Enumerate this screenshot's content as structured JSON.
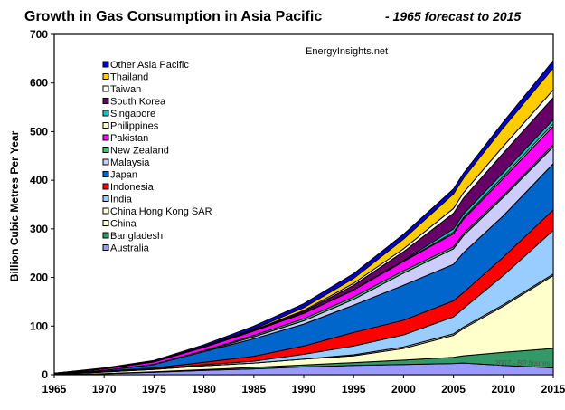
{
  "chart_data": {
    "type": "area",
    "stacked": true,
    "title": "Growth in Gas Consumption in Asia Pacific",
    "subtitle": "- 1965 forecast to 2015",
    "xlabel": "",
    "ylabel": "Billion Cubic Metres  Per Year",
    "watermark": "EnergyInsights.net",
    "credit": "2007 - BP figures",
    "xlim": [
      1965,
      2015
    ],
    "ylim": [
      0,
      700
    ],
    "x_ticks": [
      1965,
      1970,
      1975,
      1980,
      1985,
      1990,
      1995,
      2000,
      2005,
      2010,
      2015
    ],
    "y_ticks": [
      0,
      100,
      200,
      300,
      400,
      500,
      600,
      700
    ],
    "legend_position": "top-left",
    "x": [
      1965,
      1970,
      1975,
      1980,
      1985,
      1990,
      1995,
      2000,
      2005,
      2006,
      2010,
      2015
    ],
    "series": [
      {
        "name": "Australia",
        "color": "#9999ff",
        "values": [
          0,
          2,
          5,
          9,
          12,
          16,
          19,
          21,
          23,
          24,
          19,
          14
        ]
      },
      {
        "name": "Bangladesh",
        "color": "#339966",
        "values": [
          0,
          0.5,
          1,
          1.5,
          3,
          4,
          6,
          9,
          13,
          15,
          27,
          40
        ]
      },
      {
        "name": "China",
        "color": "#ffffcc",
        "values": [
          1,
          3,
          5,
          8,
          9,
          12,
          14,
          24,
          45,
          56,
          95,
          150
        ]
      },
      {
        "name": "China Hong Kong SAR",
        "color": "#ffffcc",
        "values": [
          0,
          0,
          0,
          0,
          0,
          0,
          2,
          3,
          3,
          3,
          3,
          3
        ]
      },
      {
        "name": "India",
        "color": "#99ccff",
        "values": [
          0,
          0.5,
          1,
          2,
          4,
          10,
          18,
          25,
          35,
          38,
          60,
          90
        ]
      },
      {
        "name": "Indonesia",
        "color": "#ff0000",
        "values": [
          0,
          1,
          2,
          5,
          10,
          17,
          28,
          30,
          33,
          33,
          38,
          42
        ]
      },
      {
        "name": "Japan",
        "color": "#0066cc",
        "values": [
          1,
          2,
          7,
          22,
          36,
          45,
          56,
          72,
          75,
          82,
          85,
          95
        ]
      },
      {
        "name": "Malaysia",
        "color": "#ccccff",
        "values": [
          0,
          0,
          0,
          1,
          4,
          7,
          12,
          25,
          32,
          35,
          38,
          35
        ]
      },
      {
        "name": "New Zealand",
        "color": "#33cc66",
        "values": [
          0,
          0,
          0.5,
          1,
          3,
          4,
          5,
          5,
          4,
          4,
          4,
          4
        ]
      },
      {
        "name": "Pakistan",
        "color": "#ff00ff",
        "values": [
          1,
          3,
          5,
          7,
          9,
          11,
          14,
          19,
          27,
          30,
          35,
          38
        ]
      },
      {
        "name": "Philippines",
        "color": "#ffffcc",
        "values": [
          0,
          0,
          0,
          0,
          0,
          0,
          0,
          0,
          3,
          3,
          4,
          5
        ]
      },
      {
        "name": "Singapore",
        "color": "#00cccc",
        "values": [
          0,
          0,
          0,
          0,
          0,
          1,
          1,
          2,
          7,
          7,
          8,
          9
        ]
      },
      {
        "name": "South Korea",
        "color": "#660066",
        "values": [
          0,
          0,
          0,
          0,
          1,
          3,
          9,
          18,
          32,
          33,
          40,
          45
        ]
      },
      {
        "name": "Taiwan",
        "color": "#ffffff",
        "values": [
          0,
          1,
          1,
          2,
          1,
          2,
          4,
          6,
          10,
          11,
          14,
          16
        ]
      },
      {
        "name": "Thailand",
        "color": "#ffcc00",
        "values": [
          0,
          0,
          0,
          0,
          2,
          6,
          10,
          20,
          30,
          30,
          38,
          45
        ]
      },
      {
        "name": "Other Asia Pacific",
        "color": "#0000cc",
        "values": [
          0,
          1,
          2,
          3,
          6,
          8,
          10,
          10,
          10,
          10,
          12,
          15
        ]
      }
    ]
  }
}
